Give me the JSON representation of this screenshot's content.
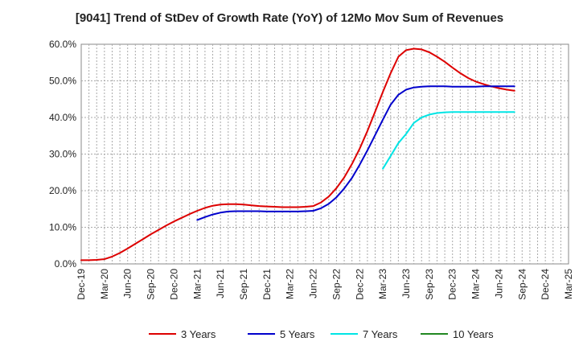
{
  "chart_data": {
    "type": "line",
    "title": "[9041]  Trend of StDev of Growth Rate (YoY) of 12Mo Mov Sum of Revenues",
    "xlabel": "",
    "ylabel": "",
    "ylim": [
      0,
      60
    ],
    "y_ticks": [
      "0.0%",
      "10.0%",
      "20.0%",
      "30.0%",
      "40.0%",
      "50.0%",
      "60.0%"
    ],
    "x_ticks": [
      "Dec-19",
      "Mar-20",
      "Jun-20",
      "Sep-20",
      "Dec-20",
      "Mar-21",
      "Jun-21",
      "Sep-21",
      "Dec-21",
      "Mar-22",
      "Jun-22",
      "Sep-22",
      "Dec-22",
      "Mar-23",
      "Jun-23",
      "Sep-23",
      "Dec-23",
      "Mar-24",
      "Jun-24",
      "Sep-24",
      "Dec-24",
      "Mar-25"
    ],
    "grid": true,
    "legend_position": "bottom",
    "series": [
      {
        "name": "3 Years",
        "color": "#dd0000",
        "start_index": 0,
        "values": [
          1.0,
          1.0,
          1.1,
          1.3,
          2.0,
          3.0,
          4.2,
          5.5,
          6.8,
          8.1,
          9.3,
          10.5,
          11.6,
          12.6,
          13.6,
          14.5,
          15.3,
          15.9,
          16.2,
          16.3,
          16.3,
          16.2,
          16.0,
          15.8,
          15.7,
          15.6,
          15.5,
          15.5,
          15.5,
          15.6,
          15.8,
          16.8,
          18.4,
          20.7,
          23.6,
          27.3,
          31.5,
          36.3,
          41.6,
          47.0,
          52.1,
          56.6,
          58.4,
          58.8,
          58.6,
          57.8,
          56.6,
          55.2,
          53.6,
          52.1,
          50.8,
          49.8,
          49.1,
          48.5,
          48.0,
          47.6,
          47.3
        ]
      },
      {
        "name": "5 Years",
        "color": "#0000cc",
        "start_index": 15,
        "values": [
          12.0,
          12.8,
          13.5,
          14.0,
          14.3,
          14.4,
          14.4,
          14.4,
          14.4,
          14.3,
          14.3,
          14.3,
          14.3,
          14.3,
          14.4,
          14.5,
          15.2,
          16.4,
          18.2,
          20.6,
          23.5,
          27.1,
          31.0,
          35.2,
          39.4,
          43.5,
          46.2,
          47.6,
          48.2,
          48.4,
          48.5,
          48.5,
          48.5,
          48.4,
          48.4,
          48.4,
          48.4,
          48.5,
          48.5,
          48.5,
          48.5,
          48.5
        ]
      },
      {
        "name": "7 Years",
        "color": "#00e5e5",
        "start_index": 39,
        "values": [
          26.0,
          29.5,
          33.0,
          35.5,
          38.5,
          40.0,
          40.8,
          41.2,
          41.4,
          41.5,
          41.5,
          41.5,
          41.5,
          41.5,
          41.5,
          41.5,
          41.5,
          41.5
        ]
      },
      {
        "name": "10 Years",
        "color": "#228822",
        "start_index": 0,
        "values": []
      }
    ]
  }
}
